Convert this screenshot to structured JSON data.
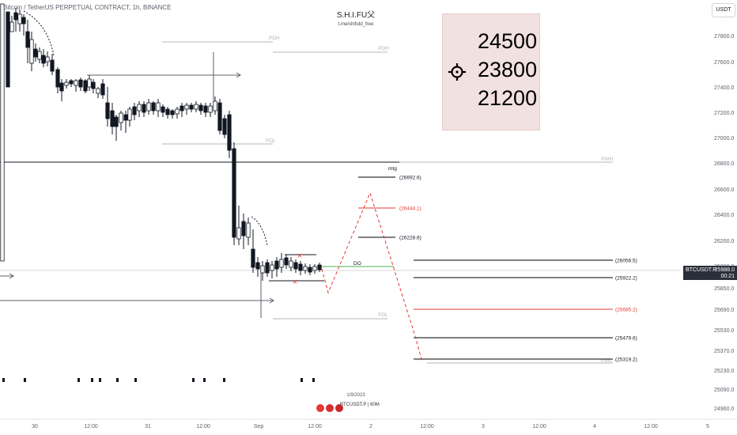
{
  "header": {
    "title": "Bitcoin / TetherUS PERPETUAL CONTRACT, 1h, BINANCE",
    "center_title": "S.H.I.FU父",
    "center_subtitle": "t.me/shifutd_free",
    "currency_button": "USDT"
  },
  "targets": {
    "values": [
      "24500",
      "23800",
      "21200"
    ],
    "icon": "crosshair-target-icon"
  },
  "price_tag": {
    "symbol": "BTCUSDT.P",
    "price": "25988.0",
    "countdown": "00:21"
  },
  "bottom": {
    "date": "1/9/2023",
    "symbol_interval": "BTCUSDT.P | 60M",
    "icons": [
      "flash-icon",
      "flag-icon",
      "flag-icon"
    ]
  },
  "colors": {
    "bull": "#ffffff",
    "bear": "#2a2e39",
    "red": "#e53935",
    "green": "#4caf50",
    "level_gray": "#b2b5be",
    "box_bg": "#f2e1e1"
  },
  "chart_data": {
    "type": "candlestick",
    "ylim": [
      24920,
      27990
    ],
    "y_ticks": [
      "27800.0",
      "27600.0",
      "27400.0",
      "27200.0",
      "27000.0",
      "26800.0",
      "26600.0",
      "26400.0",
      "26200.0",
      "26000.0",
      "25850.0",
      "25690.0",
      "25530.0",
      "25370.0",
      "25230.0",
      "25090.0",
      "24960.0"
    ],
    "x_ticks": [
      "30",
      "12:00",
      "31",
      "12:00",
      "Sep",
      "12:00",
      "2",
      "12:00",
      "3",
      "12:00",
      "4",
      "12:00",
      "5"
    ],
    "level_labels": [
      {
        "text": "PDH",
        "value": 27760
      },
      {
        "text": "PDH",
        "value": 27690
      },
      {
        "text": "PDL",
        "value": 26990
      },
      {
        "text": "PWH",
        "value": 26810
      },
      {
        "text": "mtg",
        "value": 26740
      },
      {
        "text": "DO",
        "value": 26040
      },
      {
        "text": "PDL",
        "value": 25540
      },
      {
        "text": "PWL",
        "value": 25310
      }
    ],
    "projection_levels": [
      {
        "label": "(26692.6)",
        "value": 26692.6,
        "color": "#000000"
      },
      {
        "label": "(26444.1)",
        "value": 26444.1,
        "color": "#e53935"
      },
      {
        "label": "(26228.6)",
        "value": 26228.6,
        "color": "#000000"
      },
      {
        "label": "(26056.5)",
        "value": 26056.5,
        "color": "#000000"
      },
      {
        "label": "(25922.2)",
        "value": 25922.2,
        "color": "#000000"
      },
      {
        "label": "(25685.2)",
        "value": 25685.2,
        "color": "#e53935"
      },
      {
        "label": "(25479.6)",
        "value": 25479.6,
        "color": "#000000"
      },
      {
        "label": "(25319.2)",
        "value": 25319.2,
        "color": "#000000"
      }
    ],
    "projection_path": [
      {
        "t": "1 Sep 11:00",
        "price": 25985
      },
      {
        "t": "1 Sep 13:00",
        "price": 25840
      },
      {
        "t": "1 Sep 20:00",
        "price": 26580
      },
      {
        "t": "2 Sep 04:00",
        "price": 25520
      },
      {
        "t": "2 Sep 06:00",
        "price": 25315
      }
    ]
  }
}
